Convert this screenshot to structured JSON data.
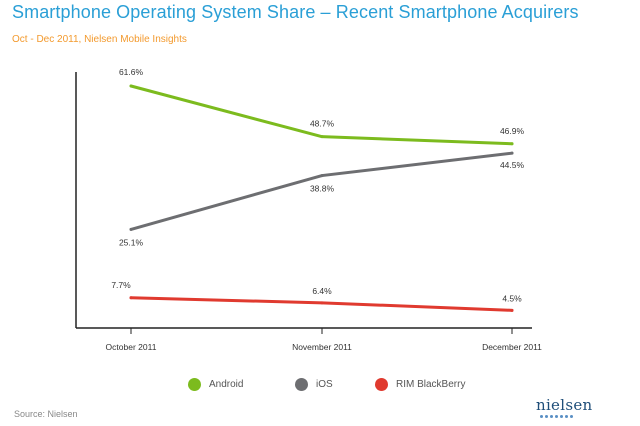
{
  "header": {
    "title": "Smartphone Operating System Share – Recent Smartphone Acquirers",
    "subtitle": "Oct - Dec 2011, Nielsen Mobile Insights"
  },
  "chart_data": {
    "type": "line",
    "title": "Smartphone Operating System Share – Recent Smartphone Acquirers",
    "subtitle": "Oct - Dec 2011, Nielsen Mobile Insights",
    "categories": [
      "October 2011",
      "November 2011",
      "December 2011"
    ],
    "ylim": [
      0,
      70
    ],
    "grid": false,
    "legend_position": "bottom",
    "series": [
      {
        "name": "Android",
        "color": "#7cbb1e",
        "values": [
          61.6,
          48.7,
          46.9
        ],
        "labels": [
          "61.6%",
          "48.7%",
          "46.9%"
        ]
      },
      {
        "name": "iOS",
        "color": "#6d6e71",
        "values": [
          25.1,
          38.8,
          44.5
        ],
        "labels": [
          "25.1%",
          "38.8%",
          "44.5%"
        ]
      },
      {
        "name": "RIM BlackBerry",
        "color": "#e03a2f",
        "values": [
          7.7,
          6.4,
          4.5
        ],
        "labels": [
          "7.7%",
          "6.4%",
          "4.5%"
        ]
      }
    ]
  },
  "legend": [
    {
      "label": "Android",
      "color": "#7cbb1e"
    },
    {
      "label": "iOS",
      "color": "#6d6e71"
    },
    {
      "label": "RIM BlackBerry",
      "color": "#e03a2f"
    }
  ],
  "footer": {
    "source": "Source: Nielsen",
    "logo_text": "nielsen"
  }
}
